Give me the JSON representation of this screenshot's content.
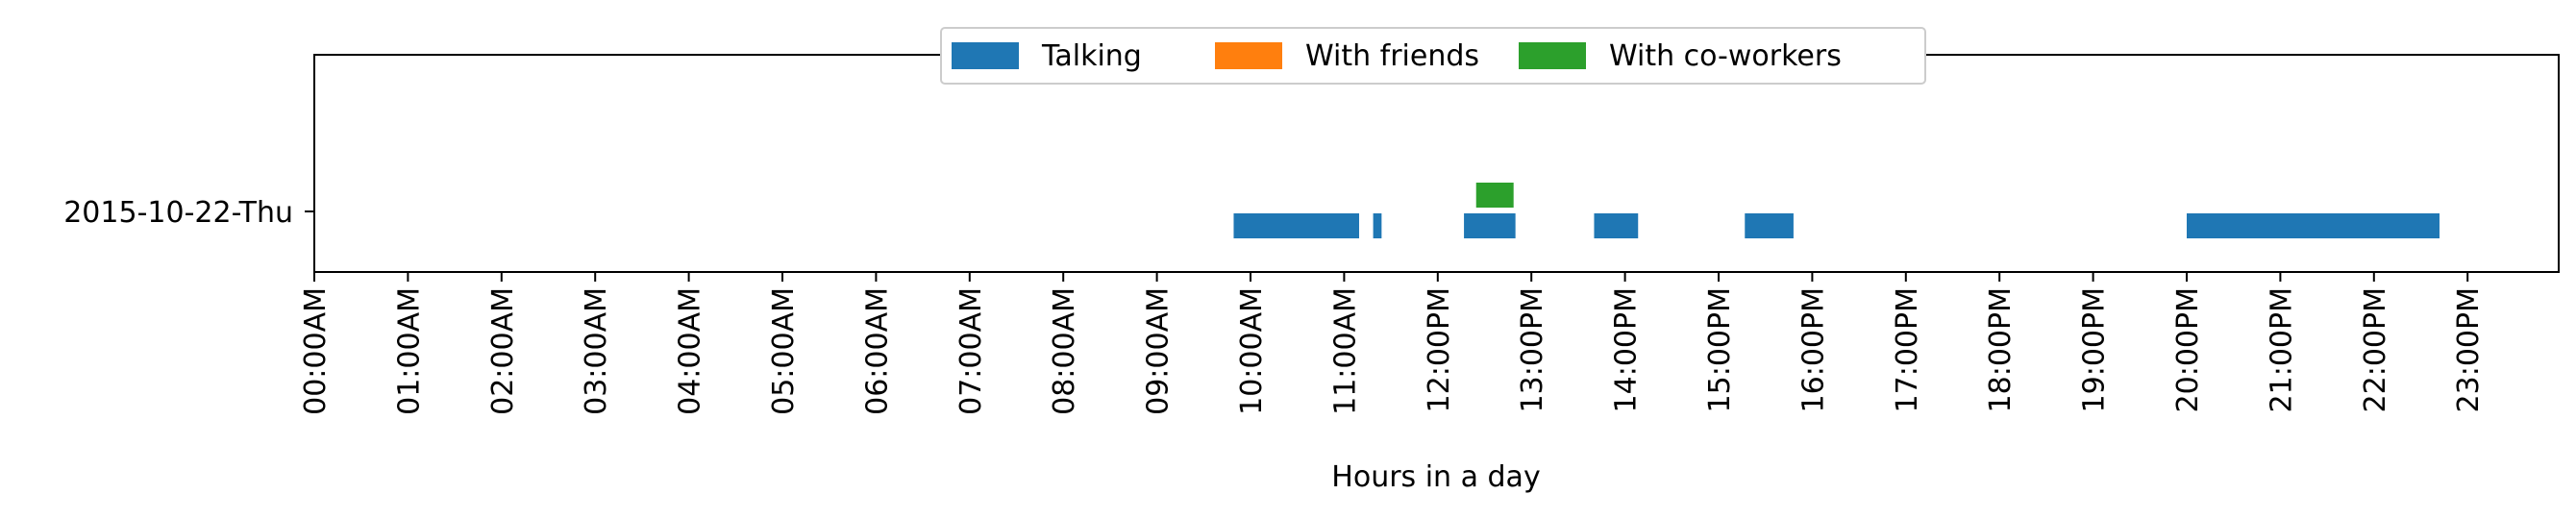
{
  "chart_data": {
    "type": "broken_barh",
    "xlabel": "Hours in a day",
    "ylabel": "",
    "title": "",
    "xlim": [
      0,
      24
    ],
    "x_ticks": [
      {
        "value": 0,
        "label": "00:00AM"
      },
      {
        "value": 1,
        "label": "01:00AM"
      },
      {
        "value": 2,
        "label": "02:00AM"
      },
      {
        "value": 3,
        "label": "03:00AM"
      },
      {
        "value": 4,
        "label": "04:00AM"
      },
      {
        "value": 5,
        "label": "05:00AM"
      },
      {
        "value": 6,
        "label": "06:00AM"
      },
      {
        "value": 7,
        "label": "07:00AM"
      },
      {
        "value": 8,
        "label": "08:00AM"
      },
      {
        "value": 9,
        "label": "09:00AM"
      },
      {
        "value": 10,
        "label": "10:00AM"
      },
      {
        "value": 11,
        "label": "11:00AM"
      },
      {
        "value": 12,
        "label": "12:00PM"
      },
      {
        "value": 13,
        "label": "13:00PM"
      },
      {
        "value": 14,
        "label": "14:00PM"
      },
      {
        "value": 15,
        "label": "15:00PM"
      },
      {
        "value": 16,
        "label": "16:00PM"
      },
      {
        "value": 17,
        "label": "17:00PM"
      },
      {
        "value": 18,
        "label": "18:00PM"
      },
      {
        "value": 19,
        "label": "19:00PM"
      },
      {
        "value": 20,
        "label": "20:00PM"
      },
      {
        "value": 21,
        "label": "21:00PM"
      },
      {
        "value": 22,
        "label": "22:00PM"
      },
      {
        "value": 23,
        "label": "23:00PM"
      }
    ],
    "rows": [
      "2015-10-22-Thu"
    ],
    "grid": false,
    "legend_position": "upper center",
    "series": [
      {
        "name": "Talking",
        "color": "#1f77b4",
        "lane": "main",
        "intervals": [
          {
            "row": "2015-10-22-Thu",
            "start": 9.82,
            "end": 11.16
          },
          {
            "row": "2015-10-22-Thu",
            "start": 11.31,
            "end": 11.4
          },
          {
            "row": "2015-10-22-Thu",
            "start": 12.28,
            "end": 12.83
          },
          {
            "row": "2015-10-22-Thu",
            "start": 13.67,
            "end": 14.14
          },
          {
            "row": "2015-10-22-Thu",
            "start": 15.28,
            "end": 15.8
          },
          {
            "row": "2015-10-22-Thu",
            "start": 20.0,
            "end": 22.7
          }
        ]
      },
      {
        "name": "With friends",
        "color": "#ff7f0e",
        "lane": "upper",
        "intervals": []
      },
      {
        "name": "With co-workers",
        "color": "#2ca02c",
        "lane": "upper",
        "intervals": [
          {
            "row": "2015-10-22-Thu",
            "start": 12.41,
            "end": 12.81
          }
        ]
      }
    ]
  }
}
